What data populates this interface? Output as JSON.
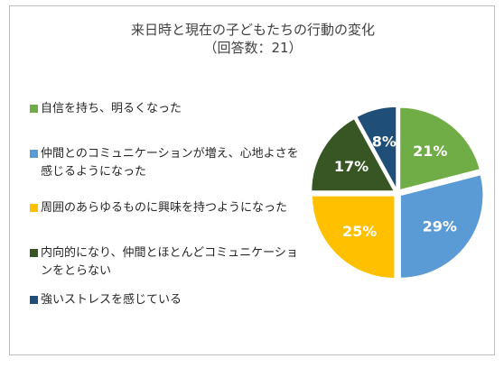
{
  "chart_data": {
    "type": "pie",
    "title": "来日時と現在の子どもたちの行動の変化",
    "subtitle": "（回答数：21）",
    "legend_position": "left",
    "slices": [
      {
        "label": "自信を持ち、明るくなった",
        "value": 21,
        "value_label": "21%",
        "color": "#70ad47"
      },
      {
        "label": "仲間とのコミュニケーションが増え、心地よさを感じるようになった",
        "value": 29,
        "value_label": "29%",
        "color": "#5b9bd5"
      },
      {
        "label": "周囲のあらゆるものに興味を持つようになった",
        "value": 25,
        "value_label": "25%",
        "color": "#ffc000"
      },
      {
        "label": "内向的になり、仲間とほとんどコミュニケーションをとらない",
        "value": 17,
        "value_label": "17%",
        "color": "#375623"
      },
      {
        "label": "強いストレスを感じている",
        "value": 8,
        "value_label": "8%",
        "color": "#1f4e79"
      }
    ]
  }
}
